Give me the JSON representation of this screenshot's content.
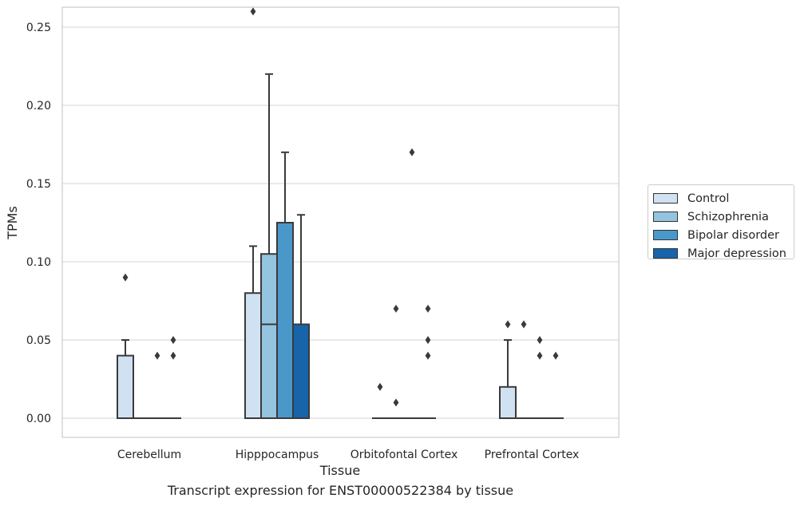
{
  "chart_data": {
    "type": "box",
    "xlabel": "Tissue",
    "ylabel": "TPMs",
    "ylim": [
      -0.013,
      0.275
    ],
    "yticks": [
      "0.00",
      "0.05",
      "0.10",
      "0.15",
      "0.20",
      "0.25"
    ],
    "ytick_values": [
      0,
      0.05,
      0.1,
      0.15,
      0.2,
      0.25
    ],
    "categories": [
      "Cerebellum",
      "Hipppocampus",
      "Orbitofontal Cortex",
      "Prefrontal Cortex"
    ],
    "grid": "horizontal",
    "legend_position": "right",
    "series": [
      {
        "name": "Control",
        "color": "#d0e1f2",
        "boxes": [
          {
            "q1": 0,
            "median": 0,
            "q3": 0.04,
            "whisker_low": 0,
            "whisker_high": 0.05,
            "outliers": [
              0.09
            ]
          },
          {
            "q1": 0,
            "median": 0,
            "q3": 0.08,
            "whisker_low": 0,
            "whisker_high": 0.11,
            "outliers": [
              0.26
            ]
          },
          {
            "q1": 0,
            "median": 0,
            "q3": 0,
            "whisker_low": 0,
            "whisker_high": 0,
            "outliers": [
              0.02
            ]
          },
          {
            "q1": 0,
            "median": 0,
            "q3": 0.02,
            "whisker_low": 0,
            "whisker_high": 0.05,
            "outliers": [
              0.06
            ]
          }
        ]
      },
      {
        "name": "Schizophrenia",
        "color": "#94c4df",
        "boxes": [
          {
            "q1": 0,
            "median": 0,
            "q3": 0,
            "whisker_low": 0,
            "whisker_high": 0,
            "outliers": []
          },
          {
            "q1": 0,
            "median": 0.06,
            "q3": 0.105,
            "whisker_low": 0,
            "whisker_high": 0.22,
            "outliers": []
          },
          {
            "q1": 0,
            "median": 0,
            "q3": 0,
            "whisker_low": 0,
            "whisker_high": 0,
            "outliers": [
              0.01,
              0.07
            ]
          },
          {
            "q1": 0,
            "median": 0,
            "q3": 0,
            "whisker_low": 0,
            "whisker_high": 0,
            "outliers": [
              0.06
            ]
          }
        ]
      },
      {
        "name": "Bipolar disorder",
        "color": "#4a98c9",
        "boxes": [
          {
            "q1": 0,
            "median": 0,
            "q3": 0,
            "whisker_low": 0,
            "whisker_high": 0,
            "outliers": [
              0.04
            ]
          },
          {
            "q1": 0,
            "median": 0,
            "q3": 0.125,
            "whisker_low": 0,
            "whisker_high": 0.17,
            "outliers": []
          },
          {
            "q1": 0,
            "median": 0,
            "q3": 0,
            "whisker_low": 0,
            "whisker_high": 0,
            "outliers": [
              0.17
            ]
          },
          {
            "q1": 0,
            "median": 0,
            "q3": 0,
            "whisker_low": 0,
            "whisker_high": 0,
            "outliers": [
              0.04,
              0.05
            ]
          }
        ]
      },
      {
        "name": "Major depression",
        "color": "#1764ab",
        "boxes": [
          {
            "q1": 0,
            "median": 0,
            "q3": 0,
            "whisker_low": 0,
            "whisker_high": 0,
            "outliers": [
              0.04,
              0.05
            ]
          },
          {
            "q1": 0,
            "median": 0,
            "q3": 0.06,
            "whisker_low": 0,
            "whisker_high": 0.13,
            "outliers": []
          },
          {
            "q1": 0,
            "median": 0,
            "q3": 0,
            "whisker_low": 0,
            "whisker_high": 0,
            "outliers": [
              0.04,
              0.05,
              0.07
            ]
          },
          {
            "q1": 0,
            "median": 0,
            "q3": 0,
            "whisker_low": 0,
            "whisker_high": 0,
            "outliers": [
              0.04
            ]
          }
        ]
      }
    ]
  },
  "caption": "Transcript expression for ENST00000522384 by tissue"
}
